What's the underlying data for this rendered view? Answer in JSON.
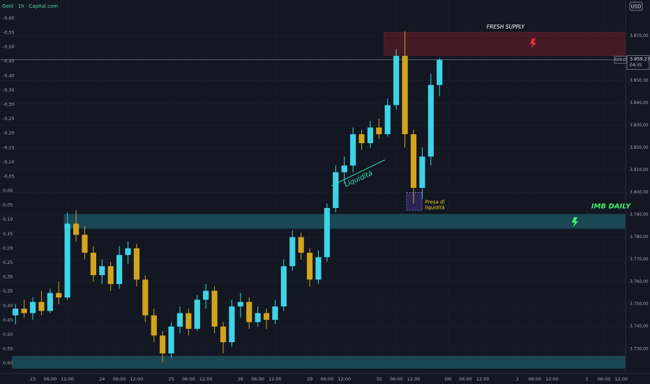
{
  "chart_data": {
    "type": "candlestick",
    "title": "Gold · 1h · Capital.com",
    "currency": "USD",
    "up_color": "#3fd3e6",
    "down_color": "#d2a31c",
    "categories": [
      null,
      null,
      "23",
      null,
      "06:00",
      null,
      "12:00",
      null,
      null,
      null,
      "24",
      null,
      "06:00",
      null,
      "12:00",
      null,
      null,
      null,
      "25",
      null,
      "06:00",
      null,
      "12:00",
      null,
      null,
      null,
      "26",
      null,
      "06:00",
      null,
      "12:00",
      null,
      null,
      null,
      "29",
      null,
      "06:00",
      null,
      "12:00",
      null,
      null,
      null,
      "30",
      null,
      "06:00",
      null,
      "12:00",
      null,
      null,
      null,
      "Ott",
      null,
      "06:00",
      null,
      "12:00",
      null,
      null,
      null,
      "2",
      null,
      "06:00",
      null,
      "12:00",
      null,
      null,
      null,
      "3",
      null,
      "06:00",
      null,
      "12:00"
    ],
    "open": [
      3745,
      3748,
      3746,
      3751,
      3747,
      3755,
      3753,
      3786,
      3781,
      3773,
      3763,
      3767,
      3759,
      3772,
      3775,
      3761,
      3745,
      3736,
      3728,
      3740,
      3746,
      3739,
      3752,
      3756,
      3740,
      3733,
      3749,
      3751,
      3742,
      3746,
      3743,
      3749,
      3767,
      3780,
      3773,
      3761,
      3771,
      3793,
      3809,
      3812,
      3826,
      3822,
      3829,
      3826,
      3839,
      3861,
      3826,
      3802,
      3816,
      3848,
      null,
      null,
      null,
      null,
      null,
      null,
      null,
      null,
      null,
      null,
      null,
      null,
      null,
      null,
      null,
      null,
      null,
      null,
      null,
      null,
      null
    ],
    "high": [
      3750,
      3752,
      3753,
      3756,
      3757,
      3760,
      3791,
      3792,
      3785,
      3776,
      3770,
      3769,
      3776,
      3778,
      3777,
      3763,
      3748,
      3738,
      3742,
      3749,
      3748,
      3754,
      3759,
      3758,
      3742,
      3752,
      3755,
      3753,
      3749,
      3748,
      3752,
      3770,
      3783,
      3782,
      3775,
      3774,
      3795,
      3812,
      3816,
      3829,
      3828,
      3832,
      3833,
      3842,
      3864,
      3872,
      3828,
      3820,
      3853,
      3860,
      null,
      null,
      null,
      null,
      null,
      null,
      null,
      null,
      null,
      null,
      null,
      null,
      null,
      null,
      null,
      null,
      null,
      null,
      null,
      null,
      null
    ],
    "low": [
      3741,
      3744,
      3743,
      3745,
      3746,
      3750,
      3752,
      3778,
      3770,
      3760,
      3759,
      3756,
      3757,
      3768,
      3758,
      3742,
      3733,
      3724,
      3726,
      3737,
      3736,
      3738,
      3748,
      3737,
      3728,
      3731,
      3744,
      3739,
      3740,
      3739,
      3741,
      3747,
      3765,
      3770,
      3758,
      3759,
      3769,
      3791,
      3804,
      3809,
      3819,
      3820,
      3824,
      3825,
      3837,
      3820,
      3795,
      3797,
      3812,
      3843,
      null,
      null,
      null,
      null,
      null,
      null,
      null,
      null,
      null,
      null,
      null,
      null,
      null,
      null,
      null,
      null,
      null,
      null,
      null,
      null,
      null
    ],
    "close": [
      3748,
      3746,
      3751,
      3747,
      3755,
      3753,
      3786,
      3781,
      3773,
      3763,
      3767,
      3759,
      3772,
      3775,
      3761,
      3745,
      3736,
      3728,
      3740,
      3746,
      3739,
      3752,
      3756,
      3740,
      3733,
      3749,
      3751,
      3742,
      3746,
      3743,
      3749,
      3767,
      3780,
      3773,
      3761,
      3771,
      3793,
      3809,
      3812,
      3826,
      3822,
      3829,
      3826,
      3839,
      3861,
      3826,
      3802,
      3816,
      3848,
      3859.27,
      null,
      null,
      null,
      null,
      null,
      null,
      null,
      null,
      null,
      null,
      null,
      null,
      null,
      null,
      null,
      null,
      null,
      null,
      null,
      null,
      null
    ],
    "ylim": [
      3719,
      3886
    ],
    "yticks": [
      {
        "value": 3730,
        "label": "3.730,00"
      },
      {
        "value": 3740,
        "label": "3.740,00"
      },
      {
        "value": 3750,
        "label": "3.750,00"
      },
      {
        "value": 3760,
        "label": "3.760,00"
      },
      {
        "value": 3770,
        "label": "3.770,00"
      },
      {
        "value": 3780,
        "label": "3.780,00"
      },
      {
        "value": 3790,
        "label": "3.790,00"
      },
      {
        "value": 3800,
        "label": "3.800,00"
      },
      {
        "value": 3810,
        "label": "3.810,00"
      },
      {
        "value": 3820,
        "label": "3.820,00"
      },
      {
        "value": 3830,
        "label": "3.830,00"
      },
      {
        "value": 3840,
        "label": "3.840,00"
      },
      {
        "value": 3850,
        "label": "3.850,00"
      },
      {
        "value": 3860,
        "label": "3.860,00"
      },
      {
        "value": 3870,
        "label": "3.870,00"
      }
    ],
    "y2lim": [
      0.636,
      -0.663
    ],
    "y2ticks": [
      {
        "value": -0.6,
        "label": "-0,60"
      },
      {
        "value": -0.55,
        "label": "-0,55"
      },
      {
        "value": -0.5,
        "label": "-0,50"
      },
      {
        "value": -0.45,
        "label": "-0,45"
      },
      {
        "value": -0.4,
        "label": "-0,40"
      },
      {
        "value": -0.35,
        "label": "-0,35"
      },
      {
        "value": -0.3,
        "label": "-0,30"
      },
      {
        "value": -0.25,
        "label": "-0,25"
      },
      {
        "value": -0.2,
        "label": "-0,20"
      },
      {
        "value": -0.15,
        "label": "-0,15"
      },
      {
        "value": -0.1,
        "label": "-0,10"
      },
      {
        "value": -0.05,
        "label": "-0,05"
      },
      {
        "value": 0,
        "label": "0,00"
      },
      {
        "value": 0.05,
        "label": "0,05"
      },
      {
        "value": 0.1,
        "label": "0,10"
      },
      {
        "value": 0.15,
        "label": "0,15"
      },
      {
        "value": 0.2,
        "label": "0,20"
      },
      {
        "value": 0.25,
        "label": "0,25"
      },
      {
        "value": 0.3,
        "label": "0,30"
      },
      {
        "value": 0.35,
        "label": "0,35"
      },
      {
        "value": 0.4,
        "label": "0,40"
      },
      {
        "value": 0.45,
        "label": "0,45"
      },
      {
        "value": 0.5,
        "label": "0,50"
      },
      {
        "value": 0.55,
        "label": "0,55"
      },
      {
        "value": 0.6,
        "label": "0,60"
      }
    ],
    "last_price": {
      "symbol": "GOLD",
      "value": 3859.27,
      "label": "3.859,27",
      "countdown": "04:35"
    },
    "zones": [
      {
        "label": "FRESH SUPPLY",
        "low": 3861.25,
        "high": 3871.6,
        "color": "#a3202c"
      },
      {
        "label": "IMB DAILY",
        "low": 3783.75,
        "high": 3790.3,
        "color": "#1f6f7c"
      },
      {
        "low": 3721.25,
        "high": 3726.9,
        "color": "#1f6f7c"
      }
    ],
    "liquidity_zone": {
      "low": 3792,
      "high": 3800
    },
    "annotations": {
      "trendline": "Liquidità",
      "grab_line1": "Presa di",
      "grab_line2": "liquidità"
    }
  }
}
